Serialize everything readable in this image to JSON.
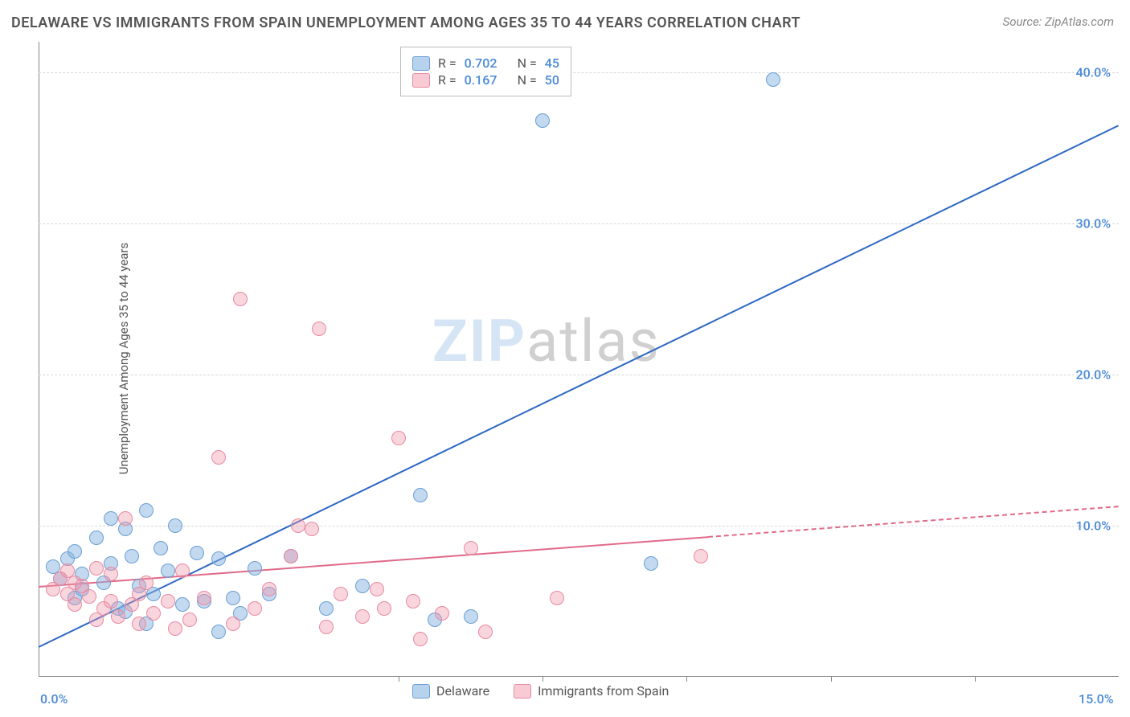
{
  "title": "DELAWARE VS IMMIGRANTS FROM SPAIN UNEMPLOYMENT AMONG AGES 35 TO 44 YEARS CORRELATION CHART",
  "source": "Source: ZipAtlas.com",
  "ylabel": "Unemployment Among Ages 35 to 44 years",
  "watermark_zip": "ZIP",
  "watermark_atlas": "atlas",
  "chart": {
    "type": "scatter",
    "xlim": [
      0,
      15
    ],
    "ylim": [
      0,
      42
    ],
    "xtick_labels": [
      "0.0%",
      "15.0%"
    ],
    "xtick_positions": [
      0,
      15
    ],
    "xtick_minor": [
      5,
      7,
      9,
      11,
      13
    ],
    "ytick_labels": [
      "10.0%",
      "20.0%",
      "30.0%",
      "40.0%"
    ],
    "ytick_positions": [
      10,
      20,
      30,
      40
    ],
    "grid_color": "#d8d8d8",
    "background_color": "#ffffff",
    "axis_color": "#888888",
    "tick_label_color": "#4a8ad6",
    "series": [
      {
        "name": "Delaware",
        "color_fill": "rgba(135,180,225,0.5)",
        "color_stroke": "#6a9fd4",
        "marker_size": 18,
        "r": 0.702,
        "n": 45,
        "trend": {
          "x1": 0,
          "y1": 2.0,
          "x2": 15,
          "y2": 36.5,
          "color": "#2d68c4",
          "width": 2.5,
          "dash_from_x": null
        },
        "points": [
          [
            0.2,
            7.3
          ],
          [
            0.3,
            6.5
          ],
          [
            0.4,
            7.8
          ],
          [
            0.5,
            5.2
          ],
          [
            0.5,
            8.3
          ],
          [
            0.6,
            6.8
          ],
          [
            0.6,
            5.8
          ],
          [
            0.8,
            9.2
          ],
          [
            0.9,
            6.2
          ],
          [
            1.0,
            7.5
          ],
          [
            1.0,
            10.5
          ],
          [
            1.1,
            4.5
          ],
          [
            1.2,
            9.8
          ],
          [
            1.2,
            4.3
          ],
          [
            1.3,
            8.0
          ],
          [
            1.4,
            6.0
          ],
          [
            1.5,
            11.0
          ],
          [
            1.5,
            3.5
          ],
          [
            1.6,
            5.5
          ],
          [
            1.7,
            8.5
          ],
          [
            1.8,
            7.0
          ],
          [
            1.9,
            10.0
          ],
          [
            2.0,
            4.8
          ],
          [
            2.2,
            8.2
          ],
          [
            2.3,
            5.0
          ],
          [
            2.5,
            7.8
          ],
          [
            2.5,
            3.0
          ],
          [
            2.7,
            5.2
          ],
          [
            2.8,
            4.2
          ],
          [
            3.0,
            7.2
          ],
          [
            3.2,
            5.5
          ],
          [
            3.5,
            8.0
          ],
          [
            4.0,
            4.5
          ],
          [
            4.5,
            6.0
          ],
          [
            5.3,
            12.0
          ],
          [
            5.5,
            3.8
          ],
          [
            6.0,
            4.0
          ],
          [
            7.0,
            36.8
          ],
          [
            8.5,
            7.5
          ],
          [
            10.2,
            39.5
          ]
        ]
      },
      {
        "name": "Immigrants from Spain",
        "color_fill": "rgba(240,150,170,0.4)",
        "color_stroke": "#e88aa0",
        "marker_size": 18,
        "r": 0.167,
        "n": 50,
        "trend": {
          "x1": 0,
          "y1": 6.0,
          "x2": 15,
          "y2": 11.3,
          "color": "#e06a88",
          "width": 2.5,
          "dash_from_x": 9.3
        },
        "points": [
          [
            0.2,
            5.8
          ],
          [
            0.3,
            6.5
          ],
          [
            0.4,
            5.5
          ],
          [
            0.4,
            7.0
          ],
          [
            0.5,
            6.2
          ],
          [
            0.5,
            4.8
          ],
          [
            0.6,
            6.0
          ],
          [
            0.7,
            5.3
          ],
          [
            0.8,
            7.2
          ],
          [
            0.8,
            3.8
          ],
          [
            0.9,
            4.5
          ],
          [
            1.0,
            6.8
          ],
          [
            1.0,
            5.0
          ],
          [
            1.1,
            4.0
          ],
          [
            1.2,
            10.5
          ],
          [
            1.3,
            4.8
          ],
          [
            1.4,
            5.5
          ],
          [
            1.4,
            3.5
          ],
          [
            1.5,
            6.2
          ],
          [
            1.6,
            4.2
          ],
          [
            1.8,
            5.0
          ],
          [
            1.9,
            3.2
          ],
          [
            2.0,
            7.0
          ],
          [
            2.1,
            3.8
          ],
          [
            2.3,
            5.2
          ],
          [
            2.5,
            14.5
          ],
          [
            2.7,
            3.5
          ],
          [
            2.8,
            25.0
          ],
          [
            3.0,
            4.5
          ],
          [
            3.2,
            5.8
          ],
          [
            3.5,
            8.0
          ],
          [
            3.6,
            10.0
          ],
          [
            3.8,
            9.8
          ],
          [
            3.9,
            23.0
          ],
          [
            4.0,
            3.3
          ],
          [
            4.2,
            5.5
          ],
          [
            4.5,
            4.0
          ],
          [
            4.7,
            5.8
          ],
          [
            4.8,
            4.5
          ],
          [
            5.0,
            15.8
          ],
          [
            5.2,
            5.0
          ],
          [
            5.3,
            2.5
          ],
          [
            5.6,
            4.2
          ],
          [
            6.0,
            8.5
          ],
          [
            6.2,
            3.0
          ],
          [
            7.2,
            5.2
          ],
          [
            9.2,
            8.0
          ]
        ]
      }
    ],
    "legend_top": {
      "rows": [
        {
          "swatch": "blue",
          "r_label": "R =",
          "r_value": "0.702",
          "n_label": "N =",
          "n_value": "45"
        },
        {
          "swatch": "pink",
          "r_label": "R =",
          "r_value": "0.167",
          "n_label": "N =",
          "n_value": "50"
        }
      ]
    },
    "legend_bottom": {
      "items": [
        {
          "swatch": "blue",
          "label": "Delaware"
        },
        {
          "swatch": "pink",
          "label": "Immigrants from Spain"
        }
      ]
    }
  }
}
